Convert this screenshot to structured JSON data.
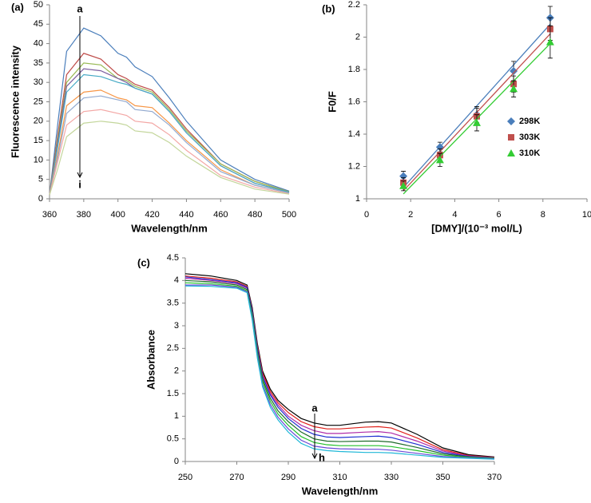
{
  "chart_data": [
    {
      "type": "line",
      "panel_label": "(a)",
      "xlabel": "Wavelength/nm",
      "ylabel": "Fluorescence intensity",
      "x": [
        360,
        365,
        370,
        380,
        390,
        400,
        405,
        410,
        420,
        430,
        440,
        460,
        480,
        500
      ],
      "xlim": [
        360,
        500
      ],
      "xticks": [
        360,
        380,
        400,
        420,
        440,
        460,
        480,
        500
      ],
      "ylim": [
        0,
        50
      ],
      "yticks": [
        0,
        5,
        10,
        15,
        20,
        25,
        30,
        35,
        40,
        45,
        50
      ],
      "annotations": [
        "a",
        "i"
      ],
      "series": [
        {
          "color": "#4a7ebb",
          "values": [
            1,
            20,
            38,
            44,
            42,
            37.5,
            36.5,
            34,
            31.5,
            26,
            20,
            10,
            5,
            2
          ]
        },
        {
          "color": "#be4b48",
          "values": [
            1,
            17,
            32,
            37.5,
            36,
            32,
            31,
            29.5,
            28,
            23.5,
            18,
            9,
            4.5,
            1.8
          ]
        },
        {
          "color": "#98b954",
          "values": [
            1,
            16,
            30,
            35,
            34.5,
            31,
            30.5,
            29,
            27.5,
            23,
            17.5,
            9,
            4.5,
            1.8
          ]
        },
        {
          "color": "#7d60a0",
          "values": [
            1,
            15,
            29,
            33.5,
            33,
            31,
            30,
            28.5,
            27,
            22.5,
            17,
            8.5,
            4,
            1.7
          ]
        },
        {
          "color": "#46aac5",
          "values": [
            1,
            14,
            27.5,
            32,
            31.5,
            30,
            29.5,
            28.5,
            27,
            22.5,
            17,
            8.5,
            4,
            1.7
          ]
        },
        {
          "color": "#f79646",
          "values": [
            1,
            12,
            24,
            27.5,
            28,
            26,
            25.5,
            24,
            23.5,
            19.5,
            15,
            7.5,
            3.5,
            1.5
          ]
        },
        {
          "color": "#92a9cf",
          "values": [
            1,
            11,
            22,
            26,
            26.5,
            25.5,
            25,
            23,
            22.5,
            19,
            14.5,
            7,
            3.5,
            1.5
          ]
        },
        {
          "color": "#f3a7a5",
          "values": [
            1,
            10,
            19,
            22.5,
            23,
            22,
            21.5,
            20,
            19.5,
            16.5,
            12.5,
            6,
            3,
            1.3
          ]
        },
        {
          "color": "#c3d69b",
          "values": [
            1,
            8,
            16,
            19.5,
            20,
            19.5,
            19,
            17.5,
            17,
            14.5,
            11,
            5.5,
            2.5,
            1.2
          ]
        }
      ]
    },
    {
      "type": "scatter",
      "panel_label": "(b)",
      "xlabel": "[DMY]/(10⁻³ mol/L)",
      "ylabel": "F0/F",
      "x": [
        1.67,
        3.33,
        5,
        6.67,
        8.33
      ],
      "xlim": [
        0,
        10
      ],
      "xticks": [
        0,
        2,
        4,
        6,
        8,
        10
      ],
      "ylim": [
        1,
        2.2
      ],
      "yticks": [
        1,
        1.2,
        1.4,
        1.6,
        1.8,
        2,
        2.2
      ],
      "series": [
        {
          "name": "298K",
          "color": "#4a7ebb",
          "marker": "diamond",
          "values": [
            1.14,
            1.32,
            1.52,
            1.79,
            2.12
          ],
          "errors": [
            0.03,
            0.03,
            0.05,
            0.06,
            0.07
          ],
          "trend": [
            1.07,
            2.08
          ]
        },
        {
          "name": "303K",
          "color": "#c0504d",
          "marker": "square",
          "values": [
            1.1,
            1.27,
            1.51,
            1.71,
            2.05
          ],
          "errors": [
            0.03,
            0.04,
            0.05,
            0.05,
            0.07
          ],
          "trend": [
            1.05,
            2.02
          ]
        },
        {
          "name": "310K",
          "color": "#33cc33",
          "marker": "triangle",
          "values": [
            1.08,
            1.24,
            1.47,
            1.68,
            1.97
          ],
          "errors": [
            0.03,
            0.04,
            0.05,
            0.05,
            0.1
          ],
          "trend": [
            1.03,
            1.96
          ]
        }
      ]
    },
    {
      "type": "line",
      "panel_label": "(c)",
      "xlabel": "Wavelength/nm",
      "ylabel": "Absorbance",
      "x": [
        250,
        260,
        270,
        274,
        276,
        278,
        280,
        283,
        286,
        290,
        295,
        300,
        305,
        310,
        320,
        325,
        330,
        340,
        350,
        360,
        370
      ],
      "xlim": [
        250,
        370
      ],
      "xticks": [
        250,
        270,
        290,
        310,
        330,
        350,
        370
      ],
      "ylim": [
        0,
        4.5
      ],
      "yticks": [
        0,
        0.5,
        1,
        1.5,
        2,
        2.5,
        3,
        3.5,
        4,
        4.5
      ],
      "annotations": [
        "a",
        "h"
      ],
      "series": [
        {
          "color": "#000000",
          "values": [
            4.15,
            4.1,
            4.0,
            3.9,
            3.4,
            2.6,
            2.0,
            1.6,
            1.35,
            1.15,
            0.95,
            0.85,
            0.8,
            0.8,
            0.87,
            0.88,
            0.85,
            0.6,
            0.3,
            0.15,
            0.1
          ]
        },
        {
          "color": "#e0201a",
          "values": [
            4.1,
            4.05,
            3.97,
            3.87,
            3.35,
            2.55,
            1.95,
            1.55,
            1.3,
            1.08,
            0.88,
            0.77,
            0.72,
            0.72,
            0.76,
            0.77,
            0.74,
            0.52,
            0.26,
            0.13,
            0.09
          ]
        },
        {
          "color": "#b02ca8",
          "values": [
            4.05,
            4.0,
            3.93,
            3.83,
            3.3,
            2.5,
            1.9,
            1.5,
            1.25,
            1.0,
            0.8,
            0.68,
            0.62,
            0.62,
            0.65,
            0.66,
            0.63,
            0.45,
            0.23,
            0.12,
            0.08
          ]
        },
        {
          "color": "#2030d0",
          "values": [
            4.08,
            4.02,
            3.95,
            3.85,
            3.32,
            2.5,
            1.88,
            1.47,
            1.2,
            0.95,
            0.73,
            0.6,
            0.54,
            0.53,
            0.55,
            0.56,
            0.53,
            0.38,
            0.2,
            0.11,
            0.08
          ]
        },
        {
          "color": "#1e6b2a",
          "values": [
            4.0,
            3.97,
            3.9,
            3.8,
            3.25,
            2.42,
            1.82,
            1.4,
            1.12,
            0.88,
            0.65,
            0.5,
            0.45,
            0.44,
            0.45,
            0.45,
            0.43,
            0.31,
            0.17,
            0.1,
            0.07
          ]
        },
        {
          "color": "#22c02a",
          "values": [
            3.95,
            3.93,
            3.87,
            3.77,
            3.2,
            2.38,
            1.77,
            1.33,
            1.05,
            0.8,
            0.55,
            0.42,
            0.37,
            0.35,
            0.35,
            0.35,
            0.33,
            0.24,
            0.14,
            0.09,
            0.07
          ]
        },
        {
          "color": "#6a4ad8",
          "values": [
            3.9,
            3.9,
            3.85,
            3.75,
            3.15,
            2.32,
            1.7,
            1.26,
            0.98,
            0.72,
            0.47,
            0.34,
            0.3,
            0.28,
            0.27,
            0.27,
            0.25,
            0.18,
            0.11,
            0.08,
            0.06
          ]
        },
        {
          "color": "#20b8d8",
          "values": [
            3.88,
            3.87,
            3.83,
            3.73,
            3.12,
            2.28,
            1.65,
            1.2,
            0.92,
            0.65,
            0.4,
            0.28,
            0.24,
            0.22,
            0.2,
            0.2,
            0.19,
            0.14,
            0.09,
            0.07,
            0.05
          ]
        }
      ]
    }
  ]
}
